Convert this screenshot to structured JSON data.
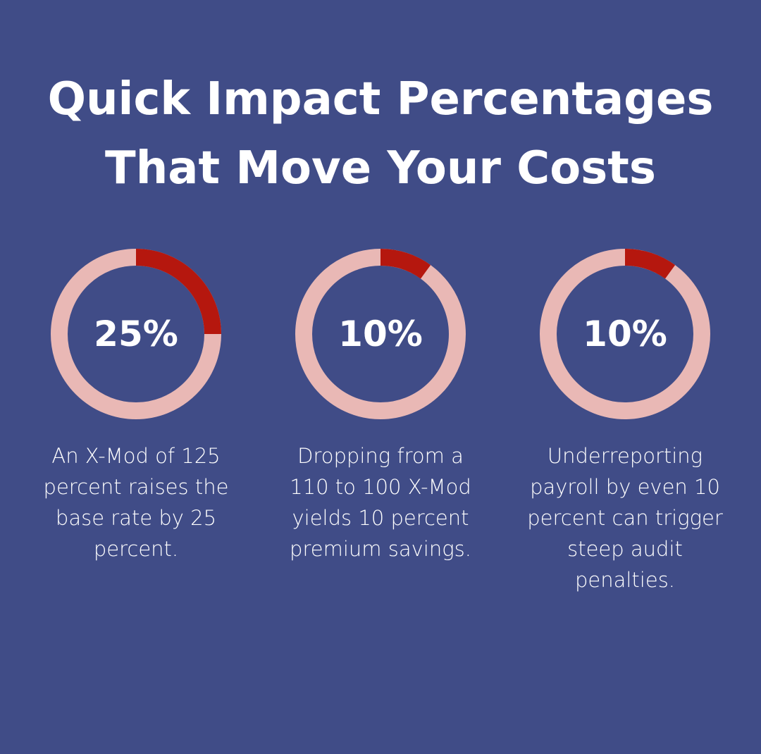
{
  "title": "Quick Impact Percentages That Move Your Costs",
  "chart_data": [
    {
      "type": "donut",
      "values": [
        25
      ],
      "value_labels": [
        "25%"
      ],
      "ylim": [
        0,
        100
      ],
      "color": "#b5170e",
      "track_color": "#e9b8b5",
      "caption": "An X-Mod of 125 percent raises the base rate by 25 percent."
    },
    {
      "type": "donut",
      "values": [
        10
      ],
      "value_labels": [
        "10%"
      ],
      "ylim": [
        0,
        100
      ],
      "color": "#b5170e",
      "track_color": "#e9b8b5",
      "caption": "Dropping from a 110 to 100 X-Mod yields 10 percent premium savings."
    },
    {
      "type": "donut",
      "values": [
        10
      ],
      "value_labels": [
        "10%"
      ],
      "ylim": [
        0,
        100
      ],
      "color": "#b5170e",
      "track_color": "#e9b8b5",
      "caption": "Underreporting payroll by even 10 percent can trigger steep audit penalties."
    }
  ]
}
